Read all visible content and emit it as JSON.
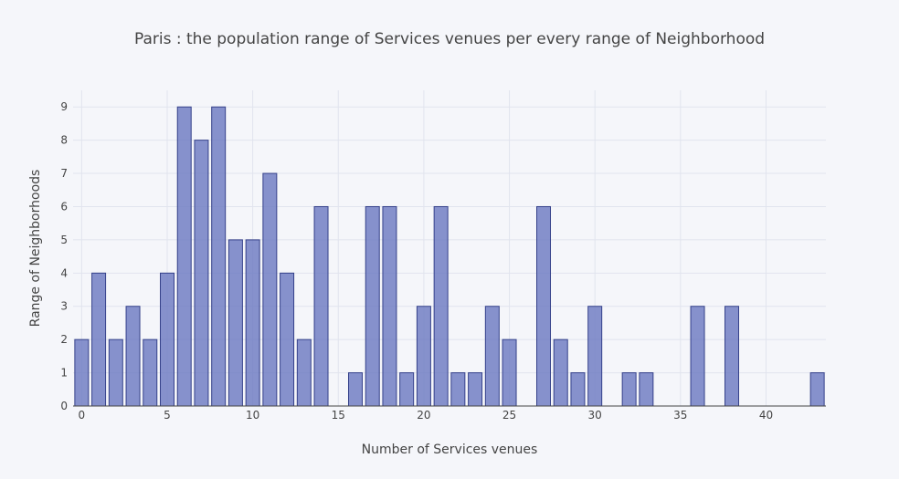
{
  "chart_data": {
    "type": "bar",
    "title": "Paris : the population range of Services venues per every range of Neighborhood",
    "xlabel": "Number of Services venues",
    "ylabel": "Range of Neighborhoods",
    "x": [
      0,
      1,
      2,
      3,
      4,
      5,
      6,
      7,
      8,
      9,
      10,
      11,
      12,
      13,
      14,
      16,
      17,
      18,
      19,
      20,
      21,
      22,
      23,
      24,
      25,
      27,
      28,
      29,
      30,
      32,
      33,
      36,
      38,
      43
    ],
    "values": [
      2,
      4,
      2,
      3,
      2,
      4,
      9,
      8,
      9,
      5,
      5,
      7,
      4,
      2,
      6,
      1,
      6,
      6,
      1,
      3,
      6,
      1,
      1,
      3,
      2,
      6,
      2,
      1,
      3,
      1,
      1,
      3,
      3,
      1
    ],
    "xlim": [
      -0.5,
      43.5
    ],
    "ylim": [
      0,
      9.5
    ],
    "xticks": [
      0,
      5,
      10,
      15,
      20,
      25,
      30,
      35,
      40
    ],
    "yticks": [
      0,
      1,
      2,
      3,
      4,
      5,
      6,
      7,
      8,
      9
    ],
    "grid": true,
    "colors": {
      "bar_fill": "#6a78c0",
      "bar_stroke": "#35418a",
      "grid": "#e1e4ee",
      "background": "#f5f6fa"
    }
  }
}
